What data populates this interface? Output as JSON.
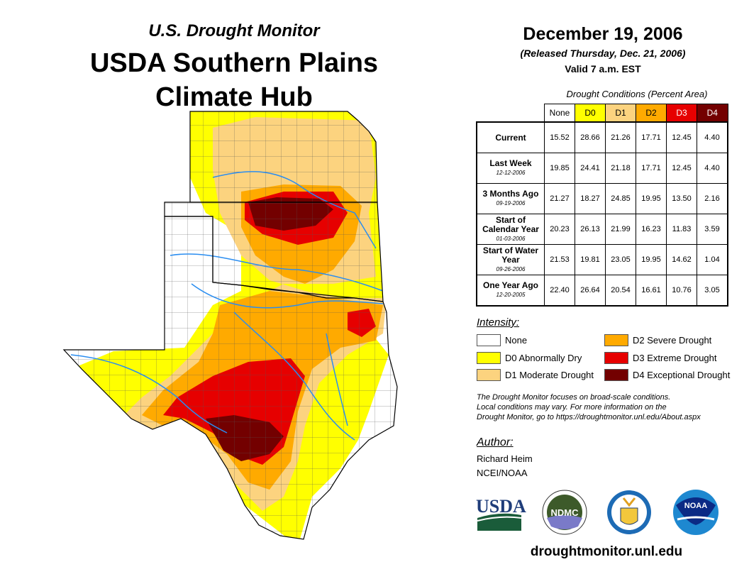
{
  "header": {
    "subtitle": "U.S. Drought Monitor",
    "title_line1": "USDA Southern Plains",
    "title_line2": "Climate Hub"
  },
  "date": {
    "main": "December 19, 2006",
    "released": "(Released Thursday, Dec. 21, 2006)",
    "valid": "Valid 7 a.m. EST"
  },
  "table": {
    "caption": "Drought Conditions (Percent Area)",
    "columns": [
      "None",
      "D0",
      "D1",
      "D2",
      "D3",
      "D4"
    ],
    "column_colors": [
      "#ffffff",
      "#ffff00",
      "#fcd37f",
      "#ffaa00",
      "#e60000",
      "#730000"
    ],
    "rows": [
      {
        "label": "Current",
        "date": "",
        "values": [
          "15.52",
          "28.66",
          "21.26",
          "17.71",
          "12.45",
          "4.40"
        ]
      },
      {
        "label": "Last Week",
        "date": "12-12-2006",
        "values": [
          "19.85",
          "24.41",
          "21.18",
          "17.71",
          "12.45",
          "4.40"
        ]
      },
      {
        "label": "3 Months Ago",
        "date": "09-19-2006",
        "values": [
          "21.27",
          "18.27",
          "24.85",
          "19.95",
          "13.50",
          "2.16"
        ]
      },
      {
        "label": "Start of Calendar Year",
        "date": "01-03-2006",
        "values": [
          "20.23",
          "26.13",
          "21.99",
          "16.23",
          "11.83",
          "3.59"
        ]
      },
      {
        "label": "Start of Water Year",
        "date": "09-26-2006",
        "values": [
          "21.53",
          "19.81",
          "23.05",
          "19.95",
          "14.62",
          "1.04"
        ]
      },
      {
        "label": "One Year Ago",
        "date": "12-20-2005",
        "values": [
          "22.40",
          "26.64",
          "20.54",
          "16.61",
          "10.76",
          "3.05"
        ]
      }
    ]
  },
  "legend": {
    "title": "Intensity:",
    "items": [
      {
        "label": "None",
        "color": "#ffffff"
      },
      {
        "label": "D0 Abnormally Dry",
        "color": "#ffff00"
      },
      {
        "label": "D1 Moderate Drought",
        "color": "#fcd37f"
      },
      {
        "label": "D2 Severe Drought",
        "color": "#ffaa00"
      },
      {
        "label": "D3 Extreme Drought",
        "color": "#e60000"
      },
      {
        "label": "D4 Exceptional Drought",
        "color": "#730000"
      }
    ]
  },
  "note": [
    "The Drought Monitor focuses on broad-scale conditions.",
    "Local conditions may vary. For more information on the",
    "Drought Monitor, go to https://droughtmonitor.unl.edu/About.aspx"
  ],
  "author": {
    "label": "Author:",
    "name": "Richard Heim",
    "org": "NCEI/NOAA"
  },
  "logos": {
    "usda": "USDA",
    "ndmc": "NDMC",
    "noaa": "NOAA"
  },
  "footer_url": "droughtmonitor.unl.edu"
}
